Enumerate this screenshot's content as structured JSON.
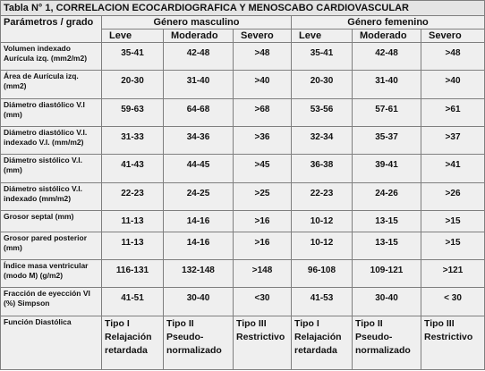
{
  "table": {
    "title": "Tabla N° 1, CORRELACION ECOCARDIOGRAFICA Y MENOSCABO CARDIOVASCULAR",
    "parameter_header": "Parámetros / grado",
    "groups": [
      "Género masculino",
      "Género femenino"
    ],
    "levels": [
      "Leve",
      "Moderado",
      "Severo",
      "Leve",
      "Moderado",
      "Severo"
    ],
    "rows": [
      {
        "label": "Volumen indexado Aurícula izq. (mm2/m2)",
        "values": [
          "35-41",
          "42-48",
          ">48",
          "35-41",
          "42-48",
          ">48"
        ]
      },
      {
        "label": "Área de Aurícula izq. (mm2)",
        "values": [
          "20-30",
          "31-40",
          ">40",
          "20-30",
          "31-40",
          ">40"
        ]
      },
      {
        "label": "Diámetro diastólico V.I (mm)",
        "values": [
          "59-63",
          "64-68",
          ">68",
          "53-56",
          "57-61",
          ">61"
        ]
      },
      {
        "label": "Diámetro diastólico V.I. indexado V.I. (mm/m2)",
        "values": [
          "31-33",
          "34-36",
          ">36",
          "32-34",
          "35-37",
          ">37"
        ]
      },
      {
        "label": "Diámetro sistólico V.I. (mm)",
        "values": [
          "41-43",
          "44-45",
          ">45",
          "36-38",
          "39-41",
          ">41"
        ]
      },
      {
        "label": "Diámetro sistólico V.I. indexado (mm/m2)",
        "values": [
          "22-23",
          "24-25",
          ">25",
          "22-23",
          "24-26",
          ">26"
        ]
      },
      {
        "label": "Grosor septal (mm)",
        "values": [
          "11-13",
          "14-16",
          ">16",
          "10-12",
          "13-15",
          ">15"
        ]
      },
      {
        "label": "Grosor pared posterior (mm)",
        "values": [
          "11-13",
          "14-16",
          ">16",
          "10-12",
          "13-15",
          ">15"
        ]
      },
      {
        "label": "Índice masa ventricular (modo M) (g/m2)",
        "values": [
          "116-131",
          "132-148",
          ">148",
          "96-108",
          "109-121",
          ">121"
        ]
      },
      {
        "label": "Fracción de eyección VI (%) Simpson",
        "values": [
          "41-51",
          "30-40",
          "<30",
          "41-53",
          "30-40",
          "< 30"
        ]
      },
      {
        "label": "Función Diastólica",
        "values": [
          "Tipo I Relajación retardada",
          "Tipo II Pseudo-normalizado",
          "Tipo III Restrictivo",
          "Tipo I Relajación retardada",
          "Tipo II Pseudo-normalizado",
          "Tipo III Restrictivo"
        ]
      }
    ]
  }
}
